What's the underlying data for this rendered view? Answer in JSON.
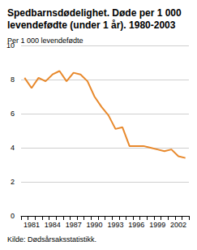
{
  "chart_data": {
    "type": "line",
    "title": "Spedbarnsdødelighet. Døde per 1 000 levendefødte (under 1 år). 1980-2003",
    "ylabel": "Per 1 000 levendefødte",
    "source": "Kilde: Dødsårsaksstatistikk.",
    "categories": [
      null,
      "1981",
      null,
      null,
      "1984",
      null,
      null,
      "1987",
      null,
      null,
      "1990",
      null,
      null,
      "1993",
      null,
      null,
      "1996",
      null,
      null,
      "1999",
      null,
      null,
      "2002",
      null
    ],
    "values": [
      8.1,
      7.5,
      8.1,
      7.9,
      8.3,
      8.5,
      7.9,
      8.4,
      8.3,
      7.9,
      7.0,
      6.4,
      5.9,
      5.1,
      5.2,
      4.1,
      4.1,
      4.1,
      4.0,
      3.9,
      3.8,
      3.9,
      3.5,
      3.4
    ],
    "color": "#e8892c",
    "ylim": [
      0,
      10
    ],
    "yticks": [
      0,
      2,
      4,
      6,
      8,
      10
    ],
    "grid": true
  }
}
